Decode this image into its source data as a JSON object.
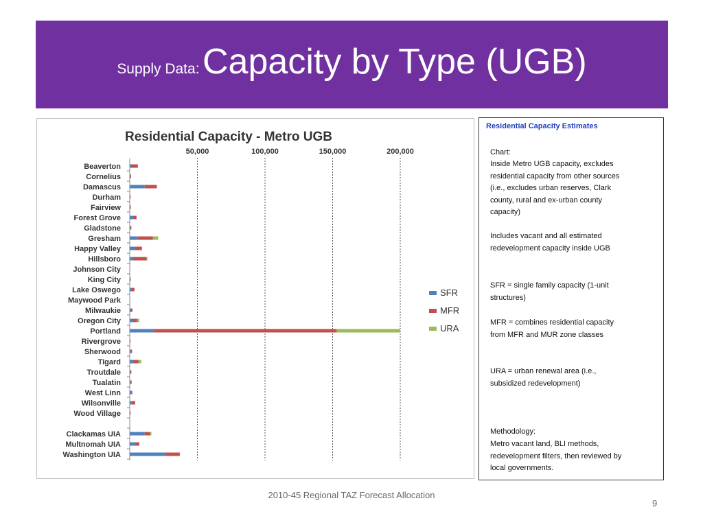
{
  "slide": {
    "title_prefix": "Supply Data:",
    "title_main": "Capacity by Type (UGB)",
    "footer": "2010-45 Regional TAZ Forecast Allocation",
    "page_number": "9",
    "band_color": "#7030a0"
  },
  "notes": {
    "heading": "Residential Capacity Estimates",
    "chart_label": "Chart:",
    "chart_text": "Inside Metro UGB capacity, excludes residential capacity from other sources (i.e., excludes urban reserves, Clark county, rural and ex-urban county capacity)",
    "includes_text": "Includes vacant and all estimated redevelopment capacity inside UGB",
    "sfr_text": "SFR = single family capacity (1-unit structures)",
    "mfr_text": "MFR = combines residential capacity from MFR and MUR zone classes",
    "ura_text": "URA = urban renewal area (i.e., subsidized redevelopment)",
    "method_label": "Methodology:",
    "method_text": "Metro vacant land, BLI methods, redevelopment filters, then reviewed by local governments."
  },
  "chart_data": {
    "type": "bar",
    "orientation": "horizontal",
    "stacked": true,
    "title": "Residential Capacity - Metro UGB",
    "ticks": [
      "50,000",
      "100,000",
      "150,000",
      "200,000"
    ],
    "xlim": [
      0,
      200000
    ],
    "x_axis_position": "top",
    "grid": "vertical dashed",
    "legend_position": "right",
    "categories": [
      "Beaverton",
      "Cornelius",
      "Damascus",
      "Durham",
      "Fairview",
      "Forest Grove",
      "Gladstone",
      "Gresham",
      "Happy Valley",
      "Hillsboro",
      "Johnson City",
      "King City",
      "Lake Oswego",
      "Maywood Park",
      "Milwaukie",
      "Oregon City",
      "Portland",
      "Rivergrove",
      "Sherwood",
      "Tigard",
      "Troutdale",
      "Tualatin",
      "West Linn",
      "Wilsonville",
      "Wood Village",
      "",
      "Clackamas UIA",
      "Multnomah UIA",
      "Washington UIA"
    ],
    "series": [
      {
        "name": "SFR",
        "color": "#4f81bd",
        "values": [
          1000,
          300,
          11000,
          200,
          300,
          2500,
          400,
          6000,
          4000,
          2500,
          0,
          300,
          1500,
          0,
          700,
          2500,
          18000,
          100,
          600,
          2500,
          500,
          600,
          1200,
          1200,
          200,
          0,
          11000,
          4000,
          26000
        ]
      },
      {
        "name": "MFR",
        "color": "#c0504d",
        "values": [
          5000,
          700,
          9000,
          400,
          500,
          2500,
          800,
          11000,
          5000,
          10000,
          0,
          400,
          2000,
          0,
          1300,
          3000,
          135000,
          100,
          1100,
          4000,
          700,
          800,
          700,
          2800,
          300,
          0,
          4000,
          3000,
          11000
        ]
      },
      {
        "name": "URA",
        "color": "#9bbb59",
        "values": [
          0,
          0,
          0,
          0,
          0,
          0,
          0,
          4000,
          0,
          500,
          0,
          0,
          0,
          0,
          0,
          1500,
          47000,
          0,
          0,
          2000,
          0,
          0,
          0,
          0,
          0,
          0,
          1000,
          0,
          0
        ]
      }
    ]
  }
}
